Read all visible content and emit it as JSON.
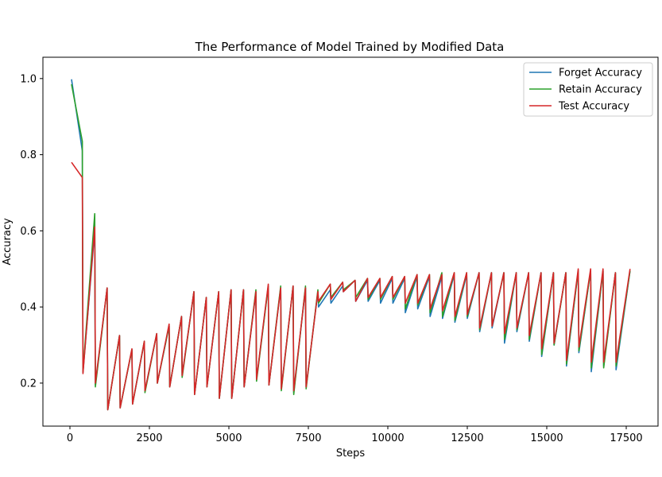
{
  "chart_data": {
    "type": "line",
    "title": "The Performance of Model Trained by Modified Data",
    "xlabel": "Steps",
    "ylabel": "Accuracy",
    "xlim": [
      -850,
      18500
    ],
    "ylim": [
      0.087,
      1.056
    ],
    "xticks": [
      0,
      2500,
      5000,
      7500,
      10000,
      12500,
      15000,
      17500
    ],
    "xtick_labels": [
      "0",
      "2500",
      "5000",
      "7500",
      "10000",
      "12500",
      "15000",
      "17500"
    ],
    "yticks": [
      0.2,
      0.4,
      0.6,
      0.8,
      1.0
    ],
    "ytick_labels": [
      "0.2",
      "0.4",
      "0.6",
      "0.8",
      "1.0"
    ],
    "grid": false,
    "legend_position": "top-right",
    "x": [
      50,
      390,
      410,
      780,
      800,
      1170,
      1190,
      1560,
      1580,
      1950,
      1970,
      2340,
      2360,
      2730,
      2750,
      3120,
      3140,
      3510,
      3530,
      3900,
      3920,
      4290,
      4310,
      4680,
      4700,
      5070,
      5090,
      5460,
      5480,
      5850,
      5870,
      6240,
      6260,
      6630,
      6650,
      7020,
      7040,
      7410,
      7430,
      7800,
      7820,
      8190,
      8210,
      8580,
      8600,
      8970,
      8990,
      9360,
      9380,
      9750,
      9770,
      10140,
      10160,
      10530,
      10550,
      10920,
      10940,
      11310,
      11330,
      11700,
      11720,
      12090,
      12110,
      12480,
      12500,
      12870,
      12890,
      13260,
      13280,
      13650,
      13670,
      14040,
      14060,
      14430,
      14450,
      14820,
      14840,
      15210,
      15230,
      15600,
      15620,
      15990,
      16010,
      16380,
      16400,
      16770,
      16790,
      17160,
      17180,
      17620
    ],
    "series": [
      {
        "name": "Forget Accuracy",
        "color": "#1f77b4",
        "values": [
          0.998,
          0.81,
          0.228,
          0.6,
          0.195,
          0.45,
          0.13,
          0.325,
          0.135,
          0.288,
          0.145,
          0.308,
          0.18,
          0.33,
          0.2,
          0.35,
          0.19,
          0.375,
          0.22,
          0.44,
          0.17,
          0.425,
          0.19,
          0.44,
          0.16,
          0.445,
          0.16,
          0.445,
          0.19,
          0.44,
          0.21,
          0.455,
          0.195,
          0.45,
          0.185,
          0.455,
          0.175,
          0.45,
          0.19,
          0.44,
          0.4,
          0.445,
          0.41,
          0.455,
          0.44,
          0.47,
          0.415,
          0.47,
          0.415,
          0.47,
          0.41,
          0.475,
          0.41,
          0.475,
          0.385,
          0.48,
          0.395,
          0.48,
          0.375,
          0.48,
          0.37,
          0.485,
          0.36,
          0.485,
          0.37,
          0.49,
          0.335,
          0.49,
          0.345,
          0.49,
          0.305,
          0.49,
          0.335,
          0.49,
          0.31,
          0.49,
          0.27,
          0.49,
          0.3,
          0.49,
          0.245,
          0.495,
          0.28,
          0.495,
          0.23,
          0.495,
          0.245,
          0.49,
          0.235,
          0.495
        ]
      },
      {
        "name": "Retain Accuracy",
        "color": "#2ca02c",
        "values": [
          0.985,
          0.835,
          0.23,
          0.645,
          0.19,
          0.45,
          0.13,
          0.325,
          0.135,
          0.288,
          0.145,
          0.31,
          0.175,
          0.33,
          0.2,
          0.35,
          0.19,
          0.375,
          0.215,
          0.44,
          0.17,
          0.425,
          0.19,
          0.44,
          0.16,
          0.445,
          0.16,
          0.445,
          0.19,
          0.445,
          0.205,
          0.455,
          0.195,
          0.455,
          0.18,
          0.455,
          0.17,
          0.455,
          0.185,
          0.445,
          0.41,
          0.46,
          0.425,
          0.465,
          0.445,
          0.47,
          0.425,
          0.475,
          0.42,
          0.475,
          0.42,
          0.48,
          0.42,
          0.48,
          0.395,
          0.485,
          0.405,
          0.485,
          0.385,
          0.49,
          0.375,
          0.49,
          0.365,
          0.49,
          0.375,
          0.49,
          0.34,
          0.49,
          0.35,
          0.49,
          0.315,
          0.49,
          0.34,
          0.49,
          0.315,
          0.49,
          0.275,
          0.49,
          0.3,
          0.49,
          0.25,
          0.495,
          0.285,
          0.495,
          0.24,
          0.495,
          0.24,
          0.49,
          0.245,
          0.495
        ]
      },
      {
        "name": "Test Accuracy",
        "color": "#d62728",
        "values": [
          0.78,
          0.74,
          0.225,
          0.61,
          0.2,
          0.45,
          0.13,
          0.325,
          0.135,
          0.29,
          0.145,
          0.31,
          0.18,
          0.33,
          0.2,
          0.355,
          0.19,
          0.375,
          0.22,
          0.44,
          0.17,
          0.425,
          0.19,
          0.44,
          0.16,
          0.445,
          0.16,
          0.445,
          0.19,
          0.44,
          0.21,
          0.46,
          0.195,
          0.45,
          0.185,
          0.455,
          0.18,
          0.45,
          0.19,
          0.44,
          0.415,
          0.46,
          0.42,
          0.465,
          0.44,
          0.47,
          0.415,
          0.475,
          0.425,
          0.475,
          0.425,
          0.48,
          0.425,
          0.48,
          0.41,
          0.485,
          0.41,
          0.485,
          0.395,
          0.485,
          0.39,
          0.49,
          0.375,
          0.49,
          0.38,
          0.49,
          0.345,
          0.49,
          0.35,
          0.49,
          0.33,
          0.49,
          0.345,
          0.49,
          0.325,
          0.49,
          0.29,
          0.49,
          0.305,
          0.49,
          0.26,
          0.5,
          0.295,
          0.5,
          0.255,
          0.5,
          0.255,
          0.49,
          0.255,
          0.5
        ]
      }
    ]
  }
}
